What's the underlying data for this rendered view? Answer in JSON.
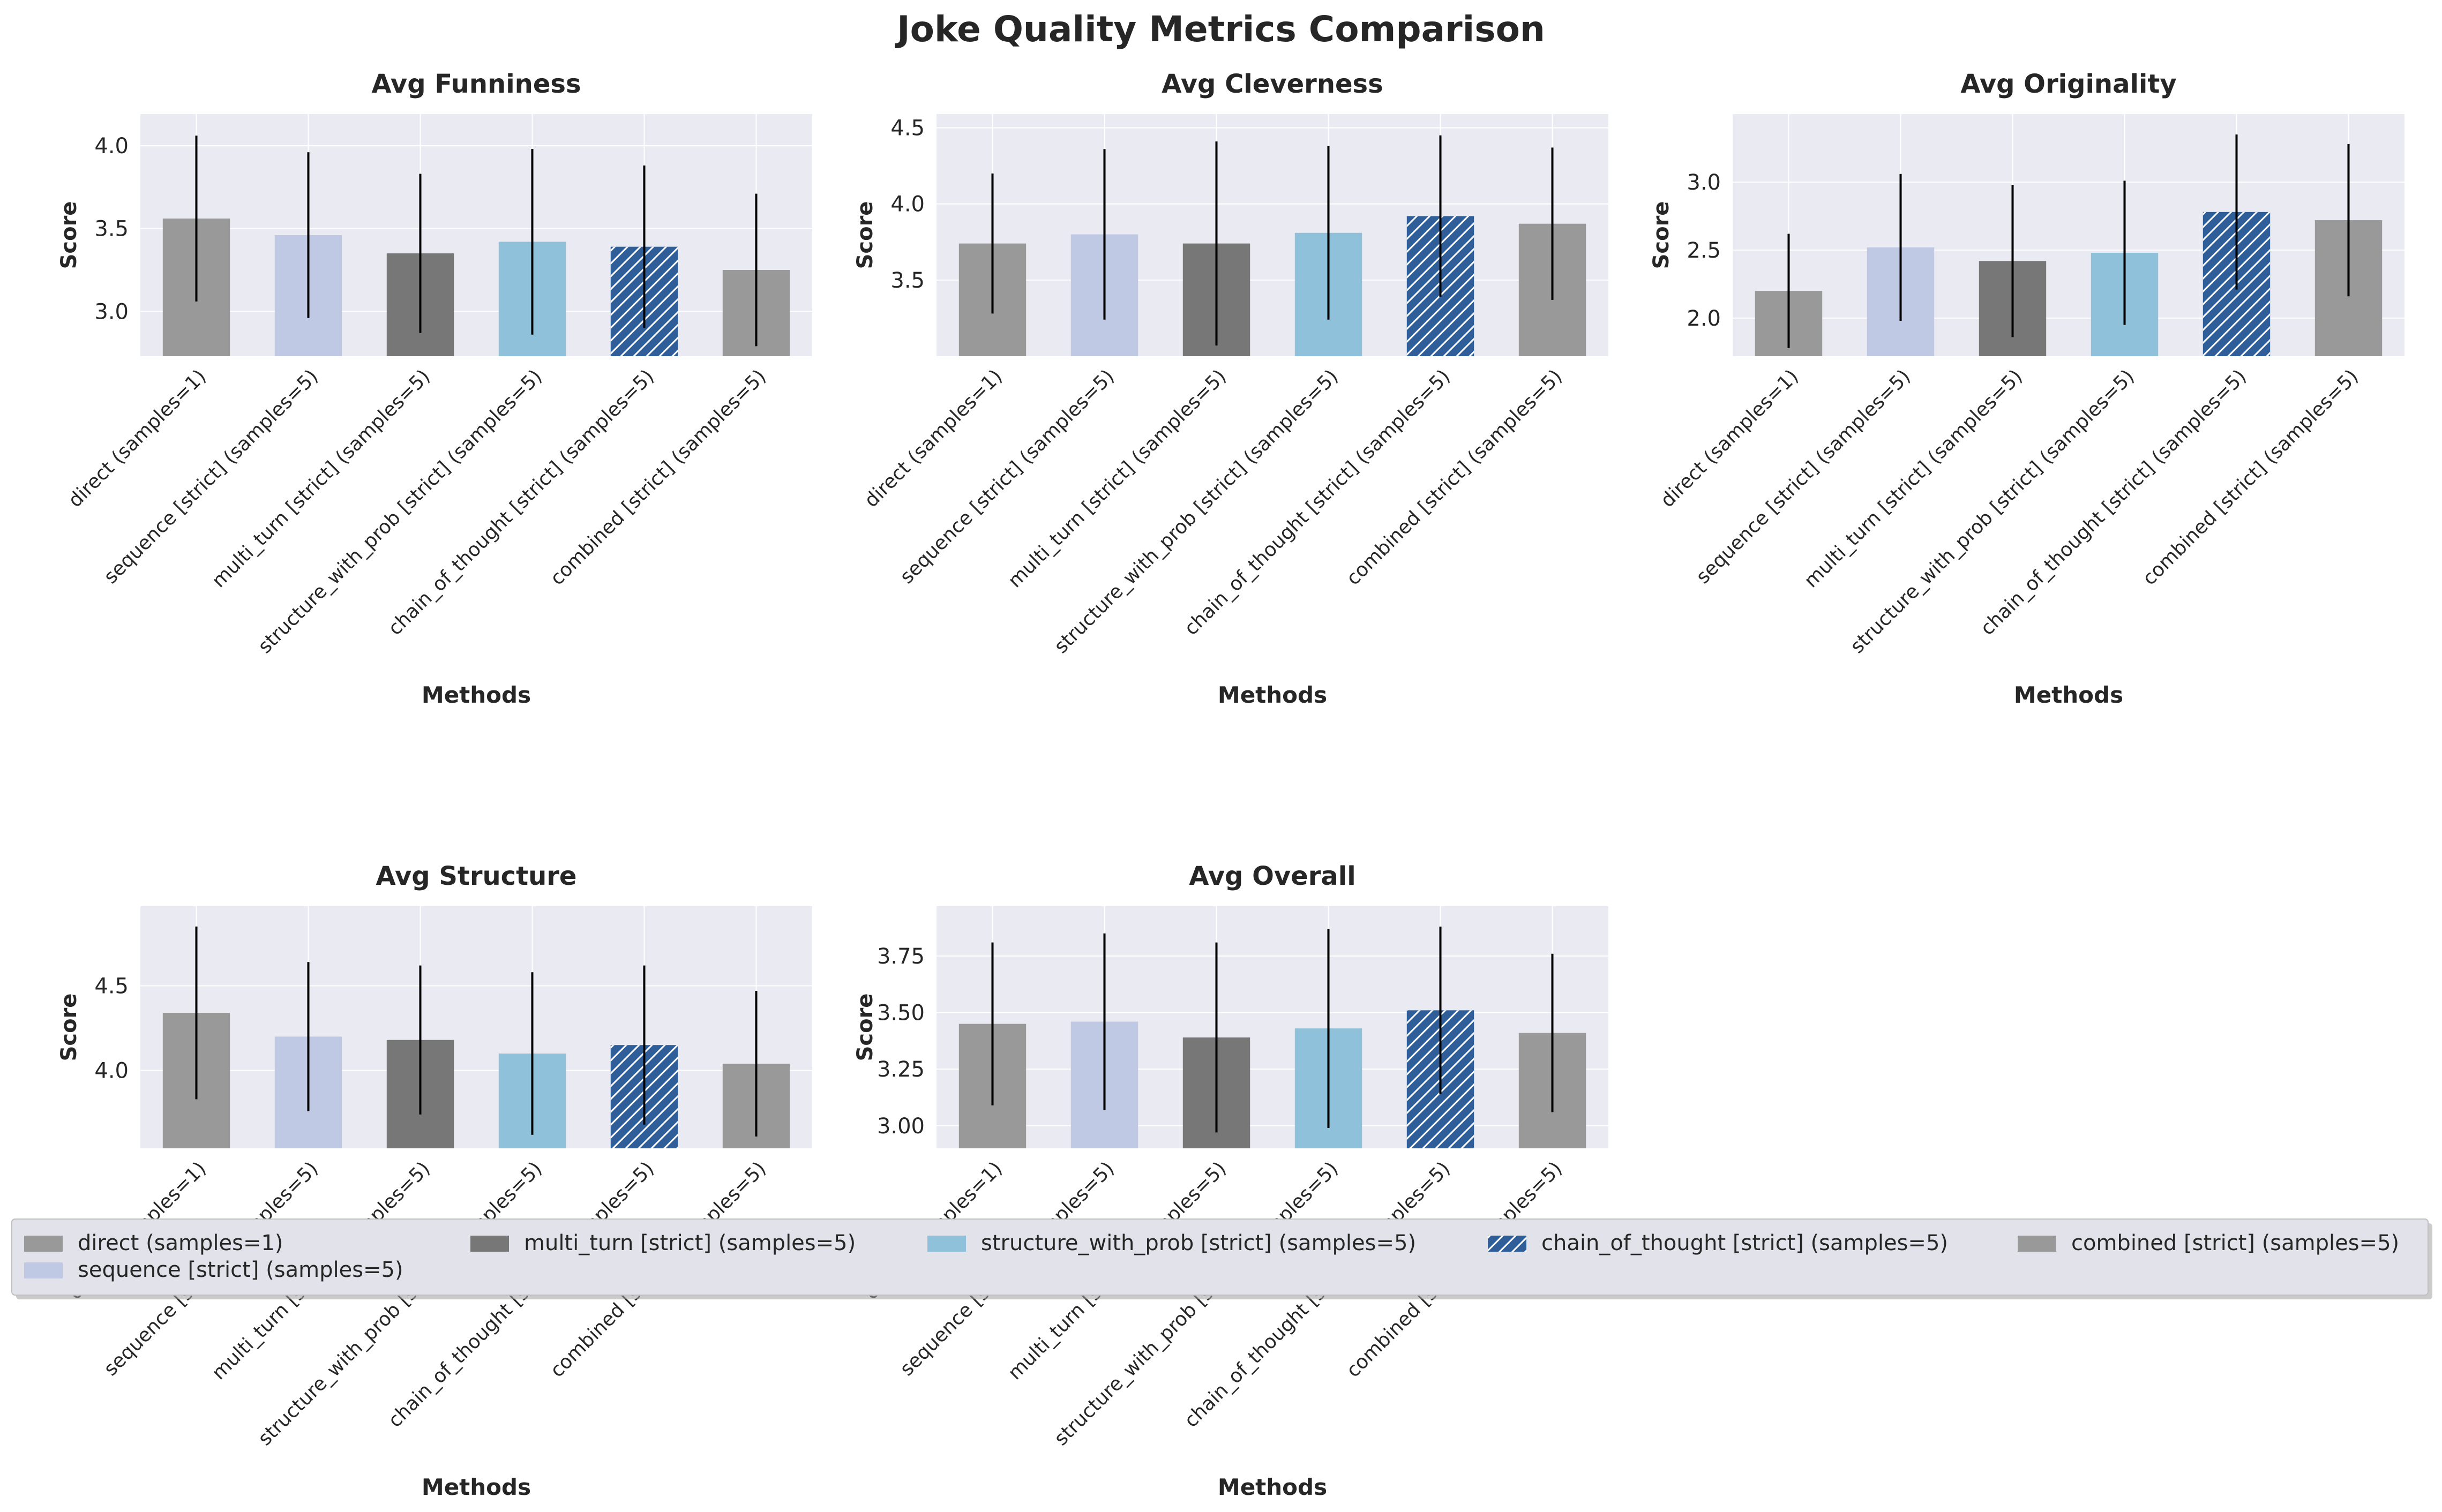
{
  "figure": {
    "title": "Joke Quality Metrics Comparison"
  },
  "colors": {
    "plot_bg": "#EAEAF2",
    "grid": "#FFFFFF",
    "error_bar": "#000000",
    "legend_bg": "#E2E2EA",
    "legend_border": "#BFBFBF"
  },
  "methods": [
    {
      "label": "direct (samples=1)",
      "color": "#999999",
      "hatch": false
    },
    {
      "label": "sequence [strict] (samples=5)",
      "color": "#BFC9E3",
      "hatch": false
    },
    {
      "label": "multi_turn [strict] (samples=5)",
      "color": "#777777",
      "hatch": false
    },
    {
      "label": "structure_with_prob [strict] (samples=5)",
      "color": "#90C1DA",
      "hatch": false
    },
    {
      "label": "chain_of_thought [strict] (samples=5)",
      "color": "#2F5E99",
      "hatch": true
    },
    {
      "label": "combined [strict] (samples=5)",
      "color": "#999999",
      "hatch": false
    }
  ],
  "legend": {
    "items": [
      "direct (samples=1)",
      "sequence [strict] (samples=5)",
      "multi_turn [strict] (samples=5)",
      "structure_with_prob [strict] (samples=5)",
      "chain_of_thought [strict] (samples=5)",
      "combined [strict] (samples=5)"
    ]
  },
  "chart_data": [
    {
      "type": "bar",
      "title": "Avg Funniness",
      "xlabel": "Methods",
      "ylabel": "Score",
      "ylim": [
        2.73,
        4.19
      ],
      "yticks": [
        3.0,
        3.5,
        4.0
      ],
      "ytick_labels": [
        "3.0",
        "3.5",
        "4.0"
      ],
      "values": [
        3.56,
        3.46,
        3.35,
        3.42,
        3.39,
        3.25
      ],
      "errors": [
        0.5,
        0.5,
        0.48,
        0.56,
        0.49,
        0.46
      ]
    },
    {
      "type": "bar",
      "title": "Avg Cleverness",
      "xlabel": "Methods",
      "ylabel": "Score",
      "ylim": [
        3.0,
        4.59
      ],
      "yticks": [
        3.5,
        4.0,
        4.5
      ],
      "ytick_labels": [
        "3.5",
        "4.0",
        "4.5"
      ],
      "values": [
        3.74,
        3.8,
        3.74,
        3.81,
        3.92,
        3.87
      ],
      "errors": [
        0.46,
        0.56,
        0.67,
        0.57,
        0.53,
        0.5
      ]
    },
    {
      "type": "bar",
      "title": "Avg Originality",
      "xlabel": "Methods",
      "ylabel": "Score",
      "ylim": [
        1.72,
        3.5
      ],
      "yticks": [
        2.0,
        2.5,
        3.0
      ],
      "ytick_labels": [
        "2.0",
        "2.5",
        "3.0"
      ],
      "values": [
        2.2,
        2.52,
        2.42,
        2.48,
        2.78,
        2.72
      ],
      "errors": [
        0.42,
        0.54,
        0.56,
        0.53,
        0.57,
        0.56
      ]
    },
    {
      "type": "bar",
      "title": "Avg Structure",
      "xlabel": "Methods",
      "ylabel": "Score",
      "ylim": [
        3.54,
        4.97
      ],
      "yticks": [
        4.0,
        4.5
      ],
      "ytick_labels": [
        "4.0",
        "4.5"
      ],
      "values": [
        4.34,
        4.2,
        4.18,
        4.1,
        4.15,
        4.04
      ],
      "errors": [
        0.51,
        0.44,
        0.44,
        0.48,
        0.47,
        0.43
      ]
    },
    {
      "type": "bar",
      "title": "Avg Overall",
      "xlabel": "Methods",
      "ylabel": "Score",
      "ylim": [
        2.9,
        3.97
      ],
      "yticks": [
        3.0,
        3.25,
        3.5,
        3.75
      ],
      "ytick_labels": [
        "3.00",
        "3.25",
        "3.50",
        "3.75"
      ],
      "values": [
        3.45,
        3.46,
        3.39,
        3.43,
        3.51,
        3.41
      ],
      "errors": [
        0.36,
        0.39,
        0.42,
        0.44,
        0.37,
        0.35
      ]
    }
  ]
}
